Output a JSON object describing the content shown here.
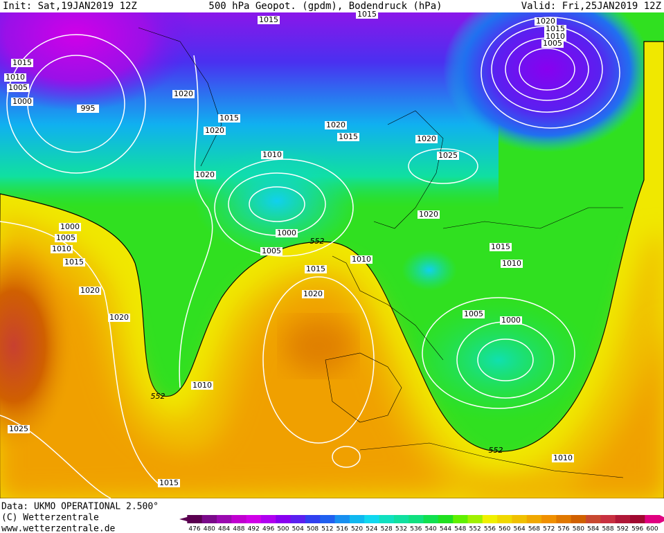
{
  "header": {
    "init": "Init: Sat,19JAN2019 12Z",
    "title": "500 hPa Geopot. (gpdm), Bodendruck (hPa)",
    "valid": "Valid: Fri,25JAN2019 12Z"
  },
  "isobar_labels": [
    "1015",
    "1015",
    "1020",
    "1015",
    "1010",
    "1005",
    "1015",
    "1010",
    "1005",
    "1000",
    "995",
    "1020",
    "1015",
    "1020",
    "1020",
    "1015",
    "1020",
    "1010",
    "1025",
    "1020",
    "1020",
    "1000",
    "1005",
    "1010",
    "1015",
    "1000",
    "552",
    "1005",
    "1010",
    "1015",
    "1010",
    "1015",
    "1020",
    "1020",
    "1020",
    "1005",
    "1000",
    "1010",
    "552",
    "1025",
    "552",
    "1010",
    "1015"
  ],
  "footer": {
    "data": "Data: UKMO OPERATIONAL 2.500°",
    "copyright": "(C) Wetterzentrale",
    "url": "www.wetterzentrale.de"
  },
  "colorbar": {
    "levels": [
      476,
      480,
      484,
      488,
      492,
      496,
      500,
      504,
      508,
      512,
      516,
      520,
      524,
      528,
      532,
      536,
      540,
      544,
      548,
      552,
      556,
      560,
      564,
      568,
      572,
      576,
      580,
      584,
      588,
      592,
      596,
      600
    ],
    "colors": [
      "#5a0050",
      "#7a0a8a",
      "#9a0ab0",
      "#c000d0",
      "#d000e8",
      "#b000f0",
      "#8800f0",
      "#5a20f0",
      "#3040f0",
      "#2060f0",
      "#1890f0",
      "#10b8f0",
      "#10d8f0",
      "#10e0c0",
      "#10e0a0",
      "#10e080",
      "#10e050",
      "#20e020",
      "#60f000",
      "#a0f000",
      "#f0f000",
      "#f0d800",
      "#f0c000",
      "#f0a800",
      "#f09000",
      "#e07800",
      "#d06000",
      "#c84830",
      "#c83040",
      "#b01838",
      "#a00830",
      "#e00080"
    ]
  }
}
